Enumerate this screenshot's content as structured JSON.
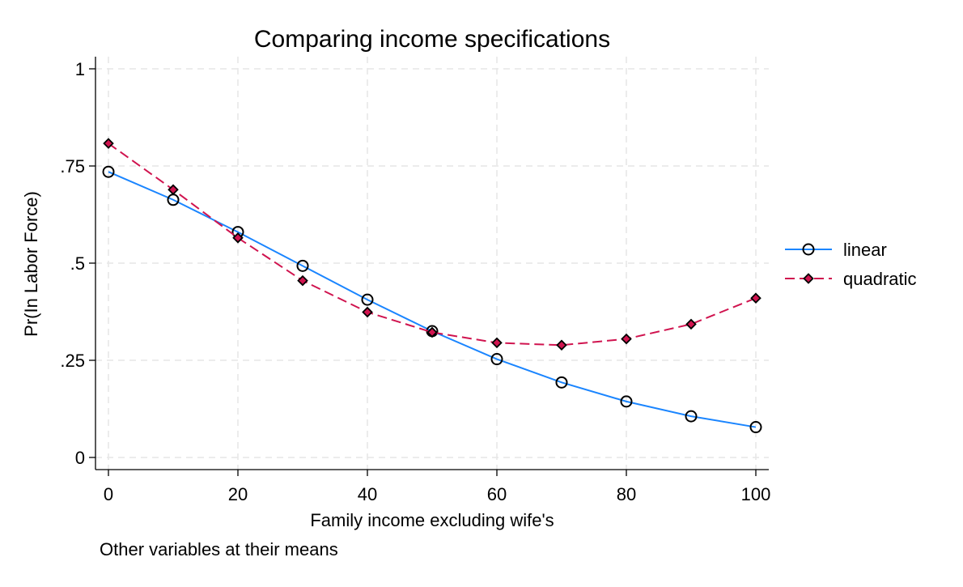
{
  "chart_data": {
    "type": "line",
    "title": "Comparing income specifications",
    "xlabel": "Family income excluding wife's",
    "ylabel": "Pr(In Labor Force)",
    "note": "Other variables at their means",
    "x": [
      0,
      10,
      20,
      30,
      40,
      50,
      60,
      70,
      80,
      90,
      100
    ],
    "xlim": [
      0,
      100
    ],
    "ylim": [
      0,
      1
    ],
    "x_ticks": [
      {
        "value": 0,
        "label": "0"
      },
      {
        "value": 20,
        "label": "20"
      },
      {
        "value": 40,
        "label": "40"
      },
      {
        "value": 60,
        "label": "60"
      },
      {
        "value": 80,
        "label": "80"
      },
      {
        "value": 100,
        "label": "100"
      }
    ],
    "y_ticks": [
      {
        "value": 0,
        "label": "0"
      },
      {
        "value": 0.25,
        "label": ".25"
      },
      {
        "value": 0.5,
        "label": ".5"
      },
      {
        "value": 0.75,
        "label": ".75"
      },
      {
        "value": 1,
        "label": "1"
      }
    ],
    "grid": true,
    "legend_position": "right",
    "series": [
      {
        "name": "linear",
        "color": "#1a85ff",
        "line_style": "solid",
        "marker": "circle",
        "values": [
          0.735,
          0.663,
          0.58,
          0.493,
          0.406,
          0.325,
          0.253,
          0.193,
          0.144,
          0.106,
          0.078
        ]
      },
      {
        "name": "quadratic",
        "color": "#d0144f",
        "line_style": "dashed",
        "marker": "diamond",
        "values": [
          0.808,
          0.689,
          0.565,
          0.455,
          0.374,
          0.322,
          0.295,
          0.289,
          0.305,
          0.343,
          0.41
        ]
      }
    ]
  }
}
